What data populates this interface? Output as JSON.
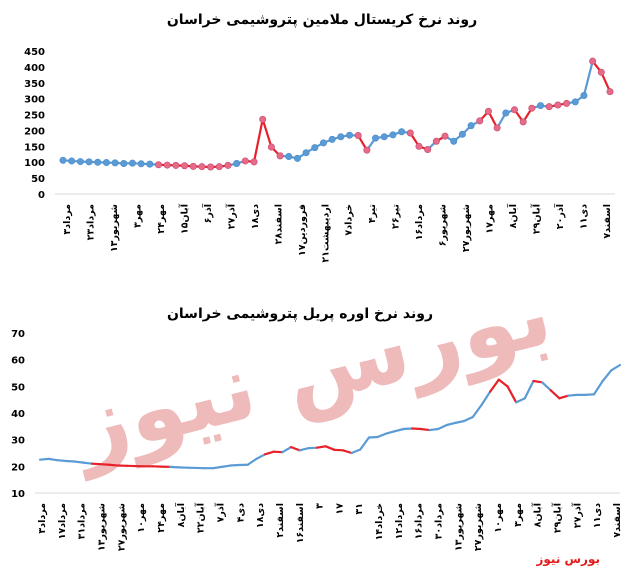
{
  "watermark": "بورس نیوز",
  "brand": "بورس نیوز",
  "colors": {
    "blue": "#5b9bd5",
    "red": "#e8202a",
    "watermark": "#e9a3a3"
  },
  "chart_data": [
    {
      "type": "line",
      "title": "روند نرخ کریستال ملامین پتروشیمی خراسان",
      "markers": true,
      "ylim": [
        0,
        450
      ],
      "yticks": [
        0,
        50,
        100,
        150,
        200,
        250,
        300,
        350,
        400,
        450
      ],
      "xlabels": [
        "۳مرداد",
        "۲۳مرداد",
        "۱۳شهریور",
        "۳مهر",
        "۲۴مهر",
        "۱۵آبان",
        "۶آذر",
        "۲۷آذر",
        "۱۸دی",
        "۲۸اسفند",
        "۱۷فروردین",
        "۲۱اردیبهشت",
        "۷خرداد",
        "۴تیر",
        "۲۶تیر",
        "۱۶مرداد",
        "۶شهریور",
        "۲۷شهریور",
        "۱۷مهر",
        "۸آبان",
        "۲۹آبان",
        "۲۰آذر",
        "۱۱دی",
        "۷اسفند"
      ],
      "values": [
        106,
        104,
        102,
        101,
        100,
        99,
        98,
        96,
        97,
        95,
        94,
        92,
        91,
        90,
        89,
        87,
        86,
        85,
        86,
        90,
        96,
        104,
        101,
        235,
        148,
        120,
        118,
        112,
        130,
        146,
        161,
        172,
        180,
        185,
        184,
        138,
        176,
        180,
        186,
        196,
        192,
        150,
        140,
        166,
        182,
        166,
        188,
        215,
        230,
        260,
        208,
        255,
        265,
        227,
        270,
        278,
        275,
        280,
        285,
        290,
        310,
        418,
        383,
        322
      ],
      "red_segments": [
        [
          11,
          19
        ],
        [
          21,
          22
        ],
        [
          22,
          23
        ],
        [
          23,
          25
        ],
        [
          34,
          35
        ],
        [
          40,
          42
        ],
        [
          43,
          44
        ],
        [
          48,
          50
        ],
        [
          52,
          54
        ],
        [
          56,
          58
        ],
        [
          61,
          63
        ]
      ]
    },
    {
      "type": "line",
      "title": "روند نرخ اوره پریل پتروشیمی خراسان",
      "markers": false,
      "ylim": [
        10,
        70
      ],
      "yticks": [
        10,
        20,
        30,
        40,
        50,
        60,
        70
      ],
      "xlabels": [
        "۳مرداد",
        "۱۷مرداد",
        "۳۱مرداد",
        "۱۳شهریور",
        "۲۷شهریور",
        "۱۰مهر",
        "۲۴مهر",
        "۸آبان",
        "۲۲آبان",
        "۷آذر",
        "۴دی",
        "۱۸دی",
        "۲اسفند",
        "۱۶اسفند",
        "۳",
        "۱۷",
        "۳۱",
        "۱۴خرداد",
        "۱۲مرداد",
        "۱۶مرداد",
        "۳۰مرداد",
        "۱۳شهریور",
        "۲۷شهریور",
        "۱۰مهر",
        "۳مهر",
        "۸آبان",
        "۲۹آبان",
        "۲۷آذر",
        "۱۱دی",
        "۷اسفند"
      ],
      "values": [
        22.5,
        22.8,
        22.3,
        22.0,
        21.8,
        21.4,
        21.0,
        20.8,
        20.6,
        20.3,
        20.2,
        20.1,
        20.0,
        20.0,
        19.9,
        19.8,
        19.6,
        19.5,
        19.4,
        19.3,
        19.3,
        19.8,
        20.3,
        20.5,
        20.6,
        22.8,
        24.5,
        25.5,
        25.3,
        27.2,
        26.0,
        26.8,
        27.0,
        27.5,
        26.2,
        26.0,
        25.0,
        26.3,
        30.8,
        31.0,
        32.3,
        33.2,
        34.0,
        34.2,
        34.0,
        33.6,
        34.0,
        35.5,
        36.3,
        37.0,
        38.5,
        43.0,
        48.0,
        52.5,
        50.0,
        44.0,
        45.5,
        52.0,
        51.5,
        48.5,
        45.5,
        46.5,
        46.8,
        46.8,
        47.0,
        52.0,
        56.0,
        58.0
      ],
      "red_segments": [
        [
          6,
          15
        ],
        [
          26,
          27
        ],
        [
          27,
          28
        ],
        [
          29,
          30
        ],
        [
          32,
          34
        ],
        [
          34,
          36
        ],
        [
          43,
          45
        ],
        [
          52,
          55
        ],
        [
          57,
          58
        ],
        [
          59,
          61
        ]
      ]
    }
  ]
}
